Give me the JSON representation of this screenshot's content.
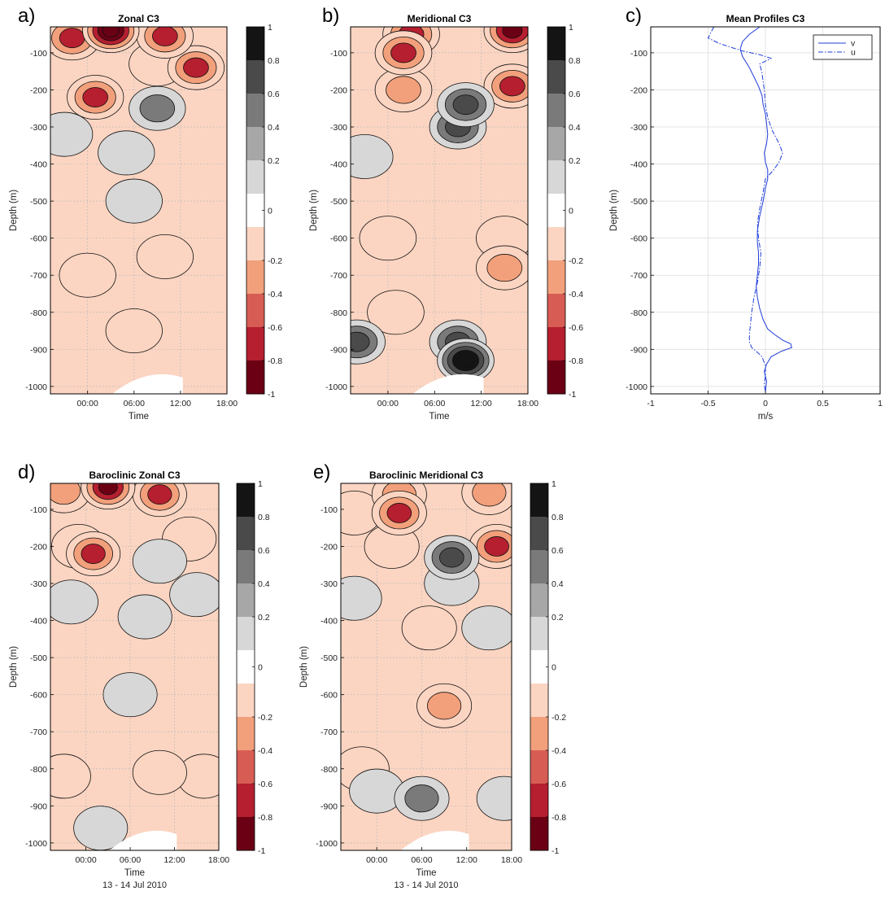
{
  "figure": {
    "common": {
      "ylabel": "Depth (m)",
      "xlabel_time": "Time",
      "time_ticks": [
        "00:00",
        "06:00",
        "12:00",
        "18:00"
      ],
      "depth_ticks": [
        -100,
        -200,
        -300,
        -400,
        -500,
        -600,
        -700,
        -800,
        -900,
        -1000
      ],
      "depth_tick_labels": [
        "-100",
        "-200",
        "-300",
        "-400",
        "-500",
        "-600",
        "-700",
        "-800",
        "-900",
        "-1000"
      ],
      "date_subtitle": "13 - 14 Jul 2010",
      "colorbar": {
        "ticks": [
          "1",
          "0.8",
          "0.6",
          "0.4",
          "0.2",
          "0",
          "-0.2",
          "-0.4",
          "-0.6",
          "-0.8",
          "-1"
        ],
        "colors": [
          "#141414",
          "#4a4a4a",
          "#7a7a7a",
          "#a7a7a7",
          "#d7d7d7",
          "#ffffff",
          "#fcd5c2",
          "#f2a07b",
          "#d75d54",
          "#b51f30",
          "#6b0015"
        ]
      }
    }
  },
  "chart_data": [
    {
      "type": "heatmap",
      "panel": "a)",
      "title": "Zonal C3",
      "xlabel": "Time",
      "ylabel": "Depth (m)",
      "time_axis": "13-14 Jul 2010, hours since 00:00 on 14 Jul",
      "xlim": [
        -4.8,
        18
      ],
      "ylim": [
        -1020,
        -30
      ],
      "colorbar_range": [
        -1,
        1
      ],
      "colormap": "dark-red (-1) to white (0) to black (1)",
      "features": [
        {
          "t": 3,
          "z": -40,
          "value": -0.9
        },
        {
          "t": -2,
          "z": -60,
          "value": -0.5
        },
        {
          "t": 10,
          "z": -55,
          "value": -0.6
        },
        {
          "t": 9,
          "z": -130,
          "value": -0.3
        },
        {
          "t": 14,
          "z": -140,
          "value": -0.5
        },
        {
          "t": 1,
          "z": -220,
          "value": -0.5
        },
        {
          "t": 9,
          "z": -250,
          "value": 0.4
        },
        {
          "t": 5,
          "z": -370,
          "value": 0.2
        },
        {
          "t": -3,
          "z": -320,
          "value": 0.2
        },
        {
          "t": 6,
          "z": -500,
          "value": 0.0
        },
        {
          "t": 0,
          "z": -700,
          "value": -0.2
        },
        {
          "t": 10,
          "z": -650,
          "value": -0.2
        },
        {
          "t": 6,
          "z": -850,
          "value": -0.2
        }
      ]
    },
    {
      "type": "heatmap",
      "panel": "b)",
      "title": "Meridional C3",
      "xlabel": "Time",
      "ylabel": "Depth (m)",
      "time_axis": "13-14 Jul 2010, hours since 00:00 on 14 Jul",
      "xlim": [
        -4.8,
        18
      ],
      "ylim": [
        -1020,
        -30
      ],
      "colorbar_range": [
        -1,
        1
      ],
      "colormap": "dark-red (-1) to white (0) to black (1)",
      "features": [
        {
          "t": 3,
          "z": -50,
          "value": -0.6
        },
        {
          "t": 16,
          "z": -40,
          "value": -0.8
        },
        {
          "t": 2,
          "z": -100,
          "value": -0.7
        },
        {
          "t": 2,
          "z": -200,
          "value": -0.4
        },
        {
          "t": 16,
          "z": -190,
          "value": -0.6
        },
        {
          "t": 10,
          "z": -240,
          "value": 0.7
        },
        {
          "t": 9,
          "z": -300,
          "value": 0.5
        },
        {
          "t": -3,
          "z": -380,
          "value": 0.3
        },
        {
          "t": 0,
          "z": -600,
          "value": -0.2
        },
        {
          "t": 15,
          "z": -600,
          "value": -0.2
        },
        {
          "t": 15,
          "z": -680,
          "value": -0.4
        },
        {
          "t": 1,
          "z": -800,
          "value": -0.3
        },
        {
          "t": 9,
          "z": -880,
          "value": 0.5
        },
        {
          "t": 10,
          "z": -930,
          "value": 0.9
        },
        {
          "t": -4,
          "z": -880,
          "value": 0.6
        }
      ]
    },
    {
      "type": "line",
      "panel": "c)",
      "title": "Mean Profiles C3",
      "xlabel": "m/s",
      "ylabel": "Depth (m)",
      "xlim": [
        -1,
        1
      ],
      "ylim": [
        -1020,
        -30
      ],
      "x_ticks": [
        "-1",
        "-0.5",
        "0",
        "0.5",
        "1"
      ],
      "grid": true,
      "legend_position": "top-right",
      "series": [
        {
          "name": "v",
          "style": "solid",
          "color": "#1f3ddb",
          "x": [
            -0.05,
            -0.14,
            -0.2,
            -0.22,
            -0.2,
            -0.14,
            -0.1,
            -0.06,
            -0.03,
            -0.02,
            0.0,
            0.01,
            0.02,
            0.01,
            -0.01,
            0.0,
            0.02,
            0.02,
            0.0,
            -0.02,
            -0.05,
            -0.07,
            -0.07,
            -0.06,
            -0.06,
            -0.07,
            -0.08,
            -0.07,
            -0.05,
            -0.02,
            0.02,
            0.08,
            0.15,
            0.22,
            0.23,
            0.14,
            0.05,
            0.01,
            -0.01,
            0.01,
            0.0
          ],
          "y": [
            -30,
            -50,
            -70,
            -90,
            -110,
            -140,
            -165,
            -190,
            -215,
            -240,
            -265,
            -290,
            -320,
            -345,
            -370,
            -395,
            -415,
            -440,
            -465,
            -500,
            -540,
            -580,
            -610,
            -640,
            -670,
            -700,
            -730,
            -760,
            -790,
            -820,
            -845,
            -860,
            -875,
            -885,
            -895,
            -905,
            -920,
            -940,
            -960,
            -985,
            -1015
          ]
        },
        {
          "name": "u",
          "style": "dashdot",
          "color": "#1f3ddb",
          "x": [
            -0.45,
            -0.5,
            -0.4,
            -0.3,
            -0.2,
            -0.05,
            0.05,
            -0.05,
            -0.03,
            -0.01,
            0.0,
            0.02,
            0.06,
            0.12,
            0.15,
            0.12,
            0.06,
            0.0,
            -0.02,
            -0.05,
            -0.07,
            -0.06,
            -0.04,
            -0.05,
            -0.07,
            -0.1,
            -0.12,
            -0.13,
            -0.14,
            -0.14,
            -0.12,
            -0.08,
            -0.03,
            0.0,
            0.0,
            -0.01,
            0.0
          ],
          "y": [
            -30,
            -60,
            -75,
            -85,
            -95,
            -105,
            -115,
            -130,
            -155,
            -200,
            -240,
            -275,
            -310,
            -345,
            -370,
            -395,
            -420,
            -440,
            -475,
            -520,
            -560,
            -600,
            -640,
            -680,
            -720,
            -760,
            -800,
            -830,
            -860,
            -880,
            -895,
            -905,
            -920,
            -945,
            -970,
            -995,
            -1015
          ]
        }
      ]
    },
    {
      "type": "heatmap",
      "panel": "d)",
      "title": "Baroclinic Zonal C3",
      "xlabel": "Time",
      "ylabel": "Depth (m)",
      "subtitle": "13 - 14 Jul 2010",
      "time_axis": "13-14 Jul 2010, hours since 00:00 on 14 Jul",
      "xlim": [
        -4.8,
        18
      ],
      "ylim": [
        -1020,
        -30
      ],
      "colorbar_range": [
        -1,
        1
      ],
      "colormap": "dark-red (-1) to white (0) to black (1)",
      "features": [
        {
          "t": 3,
          "z": -40,
          "value": -0.85
        },
        {
          "t": 10,
          "z": -60,
          "value": -0.5
        },
        {
          "t": -3,
          "z": -50,
          "value": -0.4
        },
        {
          "t": -1,
          "z": -200,
          "value": -0.3
        },
        {
          "t": 1,
          "z": -220,
          "value": -0.5
        },
        {
          "t": 14,
          "z": -180,
          "value": -0.3
        },
        {
          "t": 10,
          "z": -240,
          "value": 0.3
        },
        {
          "t": -2,
          "z": -350,
          "value": 0.3
        },
        {
          "t": 8,
          "z": -390,
          "value": 0.3
        },
        {
          "t": 15,
          "z": -330,
          "value": 0.3
        },
        {
          "t": 6,
          "z": -600,
          "value": 0.0
        },
        {
          "t": -3,
          "z": -820,
          "value": -0.2
        },
        {
          "t": 10,
          "z": -810,
          "value": -0.3
        },
        {
          "t": 16,
          "z": -820,
          "value": -0.2
        },
        {
          "t": 2,
          "z": -960,
          "value": 0.3
        }
      ]
    },
    {
      "type": "heatmap",
      "panel": "e)",
      "title": "Baroclinic Meridional C3",
      "xlabel": "Time",
      "ylabel": "Depth (m)",
      "subtitle": "13 - 14 Jul 2010",
      "time_axis": "13-14 Jul 2010, hours since 00:00 on 14 Jul",
      "xlim": [
        -4.8,
        18
      ],
      "ylim": [
        -1020,
        -30
      ],
      "colorbar_range": [
        -1,
        1
      ],
      "colormap": "dark-red (-1) to white (0) to black (1)",
      "features": [
        {
          "t": 3,
          "z": -60,
          "value": -0.4
        },
        {
          "t": 15,
          "z": -55,
          "value": -0.4
        },
        {
          "t": 3,
          "z": -110,
          "value": -0.6
        },
        {
          "t": -3,
          "z": -110,
          "value": -0.3
        },
        {
          "t": 2,
          "z": -200,
          "value": -0.3
        },
        {
          "t": 16,
          "z": -200,
          "value": -0.6
        },
        {
          "t": 10,
          "z": -230,
          "value": 0.6
        },
        {
          "t": 10,
          "z": -300,
          "value": 0.3
        },
        {
          "t": -3,
          "z": -340,
          "value": 0.3
        },
        {
          "t": 15,
          "z": -420,
          "value": 0.2
        },
        {
          "t": 7,
          "z": -420,
          "value": -0.2
        },
        {
          "t": 9,
          "z": -630,
          "value": -0.4
        },
        {
          "t": -2,
          "z": -800,
          "value": -0.2
        },
        {
          "t": 6,
          "z": -880,
          "value": 0.4
        },
        {
          "t": 17,
          "z": -880,
          "value": 0.3
        },
        {
          "t": 0,
          "z": -860,
          "value": 0.2
        }
      ]
    }
  ]
}
